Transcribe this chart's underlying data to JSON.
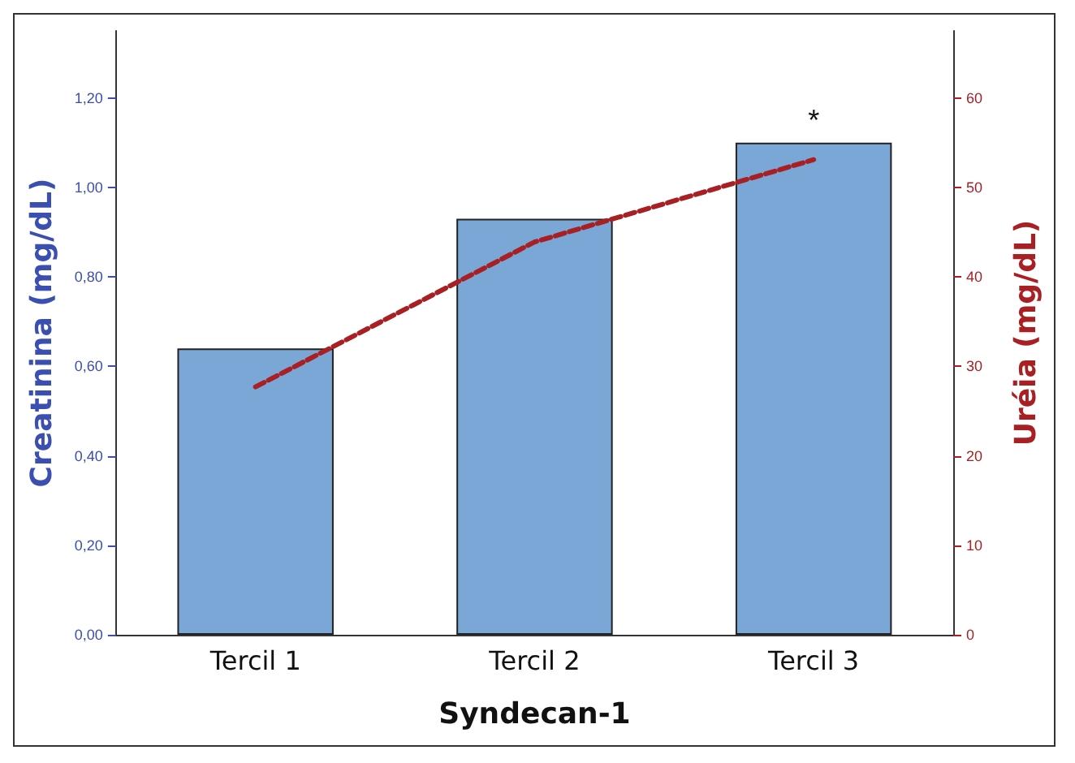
{
  "chart_data": {
    "type": "bar",
    "xlabel": "Syndecan-1",
    "ylabel": "Creatinina (mg/dL)",
    "y2label": "Uréia (mg/dL)",
    "categories": [
      "Tercil 1",
      "Tercil 2",
      "Tercil 3"
    ],
    "series": [
      {
        "color": "#7aa7d6",
        "values": [
          0.64,
          0.93,
          1.1
        ]
      },
      {
        "type": "line",
        "axis": "y2",
        "color": "#a81f24",
        "line_style": "dashed",
        "marker": "none",
        "values": [
          27.7,
          43.9,
          53.1
        ]
      }
    ],
    "ylim": [
      0,
      1.35
    ],
    "yticks": [
      {
        "value": 0,
        "label": "0,00"
      },
      {
        "value": 0.2,
        "label": "0,20"
      },
      {
        "value": 0.4,
        "label": "0,40"
      },
      {
        "value": 0.6,
        "label": "0,60"
      },
      {
        "value": 0.8,
        "label": "0,80"
      },
      {
        "value": 1,
        "label": "1,00"
      },
      {
        "value": 1.2,
        "label": "1,20"
      }
    ],
    "y2lim": [
      0,
      67.5
    ],
    "y2ticks": [
      0,
      10,
      20,
      30,
      40,
      50,
      60
    ],
    "annotations": [
      "*"
    ],
    "grid": false
  }
}
